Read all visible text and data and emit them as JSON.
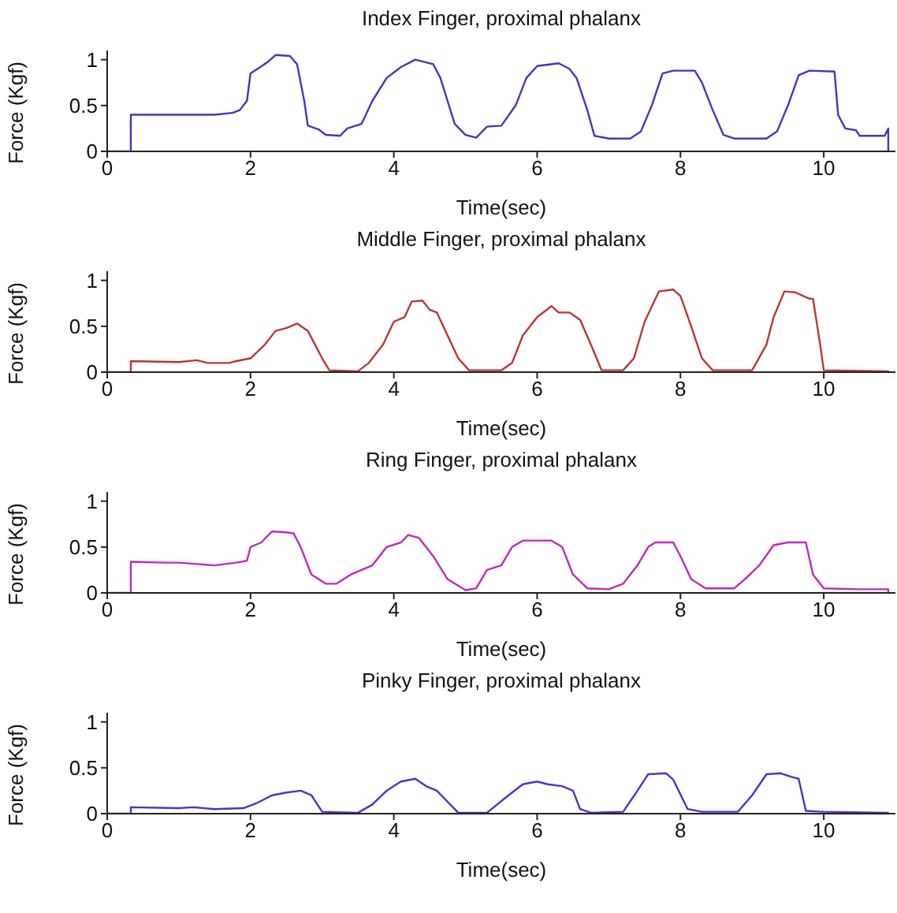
{
  "chart_data": [
    {
      "type": "line",
      "title": "Index Finger, proximal phalanx",
      "xlabel": "Time(sec)",
      "ylabel": "Force (Kgf)",
      "xlim": [
        0,
        11
      ],
      "ylim": [
        0,
        1.1
      ],
      "xticks": [
        0,
        2,
        4,
        6,
        8,
        10
      ],
      "yticks": [
        0,
        0.5,
        1
      ],
      "color": "#3a3ac0",
      "x": [
        0,
        0.33,
        0.33,
        1.2,
        1.5,
        1.75,
        1.85,
        1.95,
        2.0,
        2.1,
        2.25,
        2.35,
        2.55,
        2.65,
        2.75,
        2.8,
        2.95,
        3.05,
        3.25,
        3.35,
        3.55,
        3.7,
        3.9,
        4.1,
        4.3,
        4.45,
        4.55,
        4.65,
        4.75,
        4.85,
        5.0,
        5.15,
        5.3,
        5.5,
        5.7,
        5.85,
        6.0,
        6.3,
        6.45,
        6.55,
        6.7,
        6.8,
        7.0,
        7.3,
        7.45,
        7.6,
        7.75,
        7.9,
        8.2,
        8.3,
        8.45,
        8.6,
        8.75,
        9.2,
        9.35,
        9.5,
        9.65,
        9.8,
        10.15,
        10.2,
        10.3,
        10.45,
        10.5,
        10.85,
        10.9,
        10.9
      ],
      "values": [
        0,
        0,
        0.4,
        0.4,
        0.4,
        0.42,
        0.45,
        0.55,
        0.85,
        0.9,
        0.98,
        1.05,
        1.04,
        0.95,
        0.55,
        0.28,
        0.24,
        0.18,
        0.17,
        0.25,
        0.3,
        0.55,
        0.8,
        0.92,
        1.0,
        0.97,
        0.95,
        0.8,
        0.55,
        0.3,
        0.18,
        0.15,
        0.27,
        0.28,
        0.5,
        0.8,
        0.93,
        0.96,
        0.9,
        0.8,
        0.45,
        0.17,
        0.14,
        0.14,
        0.22,
        0.5,
        0.85,
        0.88,
        0.88,
        0.75,
        0.45,
        0.18,
        0.14,
        0.14,
        0.22,
        0.5,
        0.83,
        0.88,
        0.87,
        0.4,
        0.25,
        0.23,
        0.17,
        0.17,
        0.25,
        0
      ]
    },
    {
      "type": "line",
      "title": "Middle Finger, proximal phalanx",
      "xlabel": "Time(sec)",
      "ylabel": "Force (Kgf)",
      "xlim": [
        0,
        11
      ],
      "ylim": [
        0,
        1.1
      ],
      "xticks": [
        0,
        2,
        4,
        6,
        8,
        10
      ],
      "yticks": [
        0,
        0.5,
        1
      ],
      "color": "#c03434",
      "x": [
        0,
        0.33,
        0.33,
        1.0,
        1.25,
        1.4,
        1.7,
        1.8,
        2.0,
        2.2,
        2.35,
        2.5,
        2.65,
        2.8,
        3.0,
        3.1,
        3.5,
        3.65,
        3.85,
        4.0,
        4.15,
        4.25,
        4.4,
        4.5,
        4.6,
        4.75,
        4.9,
        5.05,
        5.5,
        5.65,
        5.8,
        6.0,
        6.2,
        6.3,
        6.45,
        6.6,
        6.75,
        6.9,
        7.2,
        7.35,
        7.5,
        7.7,
        7.9,
        8.0,
        8.15,
        8.3,
        8.45,
        9.0,
        9.2,
        9.3,
        9.45,
        9.6,
        9.8,
        9.85,
        9.95,
        10.0,
        10.9,
        10.9
      ],
      "values": [
        0,
        0,
        0.12,
        0.11,
        0.13,
        0.1,
        0.1,
        0.12,
        0.15,
        0.3,
        0.45,
        0.48,
        0.53,
        0.45,
        0.15,
        0.02,
        0.01,
        0.1,
        0.3,
        0.55,
        0.6,
        0.77,
        0.78,
        0.68,
        0.65,
        0.4,
        0.15,
        0.02,
        0.02,
        0.1,
        0.4,
        0.6,
        0.72,
        0.65,
        0.65,
        0.57,
        0.3,
        0.02,
        0.02,
        0.15,
        0.55,
        0.88,
        0.9,
        0.83,
        0.5,
        0.15,
        0.02,
        0.02,
        0.3,
        0.6,
        0.88,
        0.87,
        0.8,
        0.8,
        0.3,
        0.02,
        0.01,
        0
      ]
    },
    {
      "type": "line",
      "title": "Ring Finger, proximal phalanx",
      "xlabel": "Time(sec)",
      "ylabel": "Force (Kgf)",
      "xlim": [
        0,
        11
      ],
      "ylim": [
        0,
        1.1
      ],
      "xticks": [
        0,
        2,
        4,
        6,
        8,
        10
      ],
      "yticks": [
        0,
        0.5,
        1
      ],
      "color": "#c028c0",
      "x": [
        0,
        0.33,
        0.33,
        0.8,
        1.0,
        1.5,
        1.8,
        1.95,
        2.0,
        2.15,
        2.3,
        2.5,
        2.6,
        2.7,
        2.85,
        3.05,
        3.2,
        3.4,
        3.7,
        3.9,
        4.1,
        4.2,
        4.35,
        4.45,
        4.55,
        4.75,
        5.0,
        5.15,
        5.3,
        5.5,
        5.65,
        5.8,
        6.2,
        6.35,
        6.5,
        6.7,
        7.0,
        7.2,
        7.4,
        7.55,
        7.65,
        7.9,
        8.0,
        8.15,
        8.35,
        8.75,
        8.9,
        9.1,
        9.3,
        9.5,
        9.75,
        9.85,
        10.0,
        10.5,
        10.9,
        10.9
      ],
      "values": [
        0,
        0,
        0.34,
        0.33,
        0.33,
        0.3,
        0.33,
        0.35,
        0.5,
        0.55,
        0.67,
        0.66,
        0.65,
        0.5,
        0.2,
        0.1,
        0.1,
        0.2,
        0.3,
        0.5,
        0.55,
        0.63,
        0.6,
        0.5,
        0.4,
        0.15,
        0.03,
        0.05,
        0.25,
        0.3,
        0.5,
        0.57,
        0.57,
        0.5,
        0.2,
        0.05,
        0.04,
        0.1,
        0.3,
        0.5,
        0.55,
        0.55,
        0.4,
        0.15,
        0.05,
        0.05,
        0.15,
        0.3,
        0.52,
        0.55,
        0.55,
        0.2,
        0.05,
        0.04,
        0.04,
        0
      ]
    },
    {
      "type": "line",
      "title": "Pinky Finger, proximal phalanx",
      "xlabel": "Time(sec)",
      "ylabel": "Force (Kgf)",
      "xlim": [
        0,
        11
      ],
      "ylim": [
        0,
        1.1
      ],
      "xticks": [
        0,
        2,
        4,
        6,
        8,
        10
      ],
      "yticks": [
        0,
        0.5,
        1
      ],
      "color": "#3a3ad0",
      "x": [
        0,
        0.33,
        0.33,
        1.0,
        1.2,
        1.5,
        1.9,
        2.1,
        2.3,
        2.5,
        2.7,
        2.85,
        3.0,
        3.5,
        3.7,
        3.9,
        4.0,
        4.1,
        4.3,
        4.45,
        4.6,
        4.9,
        5.3,
        5.6,
        5.8,
        6.0,
        6.15,
        6.35,
        6.5,
        6.6,
        6.75,
        7.2,
        7.4,
        7.55,
        7.8,
        7.9,
        8.1,
        8.3,
        8.8,
        9.0,
        9.2,
        9.4,
        9.55,
        9.65,
        9.75,
        10.0,
        10.9,
        10.9
      ],
      "values": [
        0,
        0,
        0.07,
        0.06,
        0.07,
        0.05,
        0.06,
        0.12,
        0.2,
        0.23,
        0.25,
        0.2,
        0.02,
        0.01,
        0.1,
        0.25,
        0.3,
        0.35,
        0.38,
        0.3,
        0.25,
        0.01,
        0.01,
        0.2,
        0.32,
        0.35,
        0.32,
        0.3,
        0.25,
        0.05,
        0.01,
        0.02,
        0.25,
        0.43,
        0.44,
        0.37,
        0.05,
        0.02,
        0.02,
        0.2,
        0.43,
        0.44,
        0.4,
        0.38,
        0.03,
        0.02,
        0.01,
        0
      ]
    }
  ]
}
